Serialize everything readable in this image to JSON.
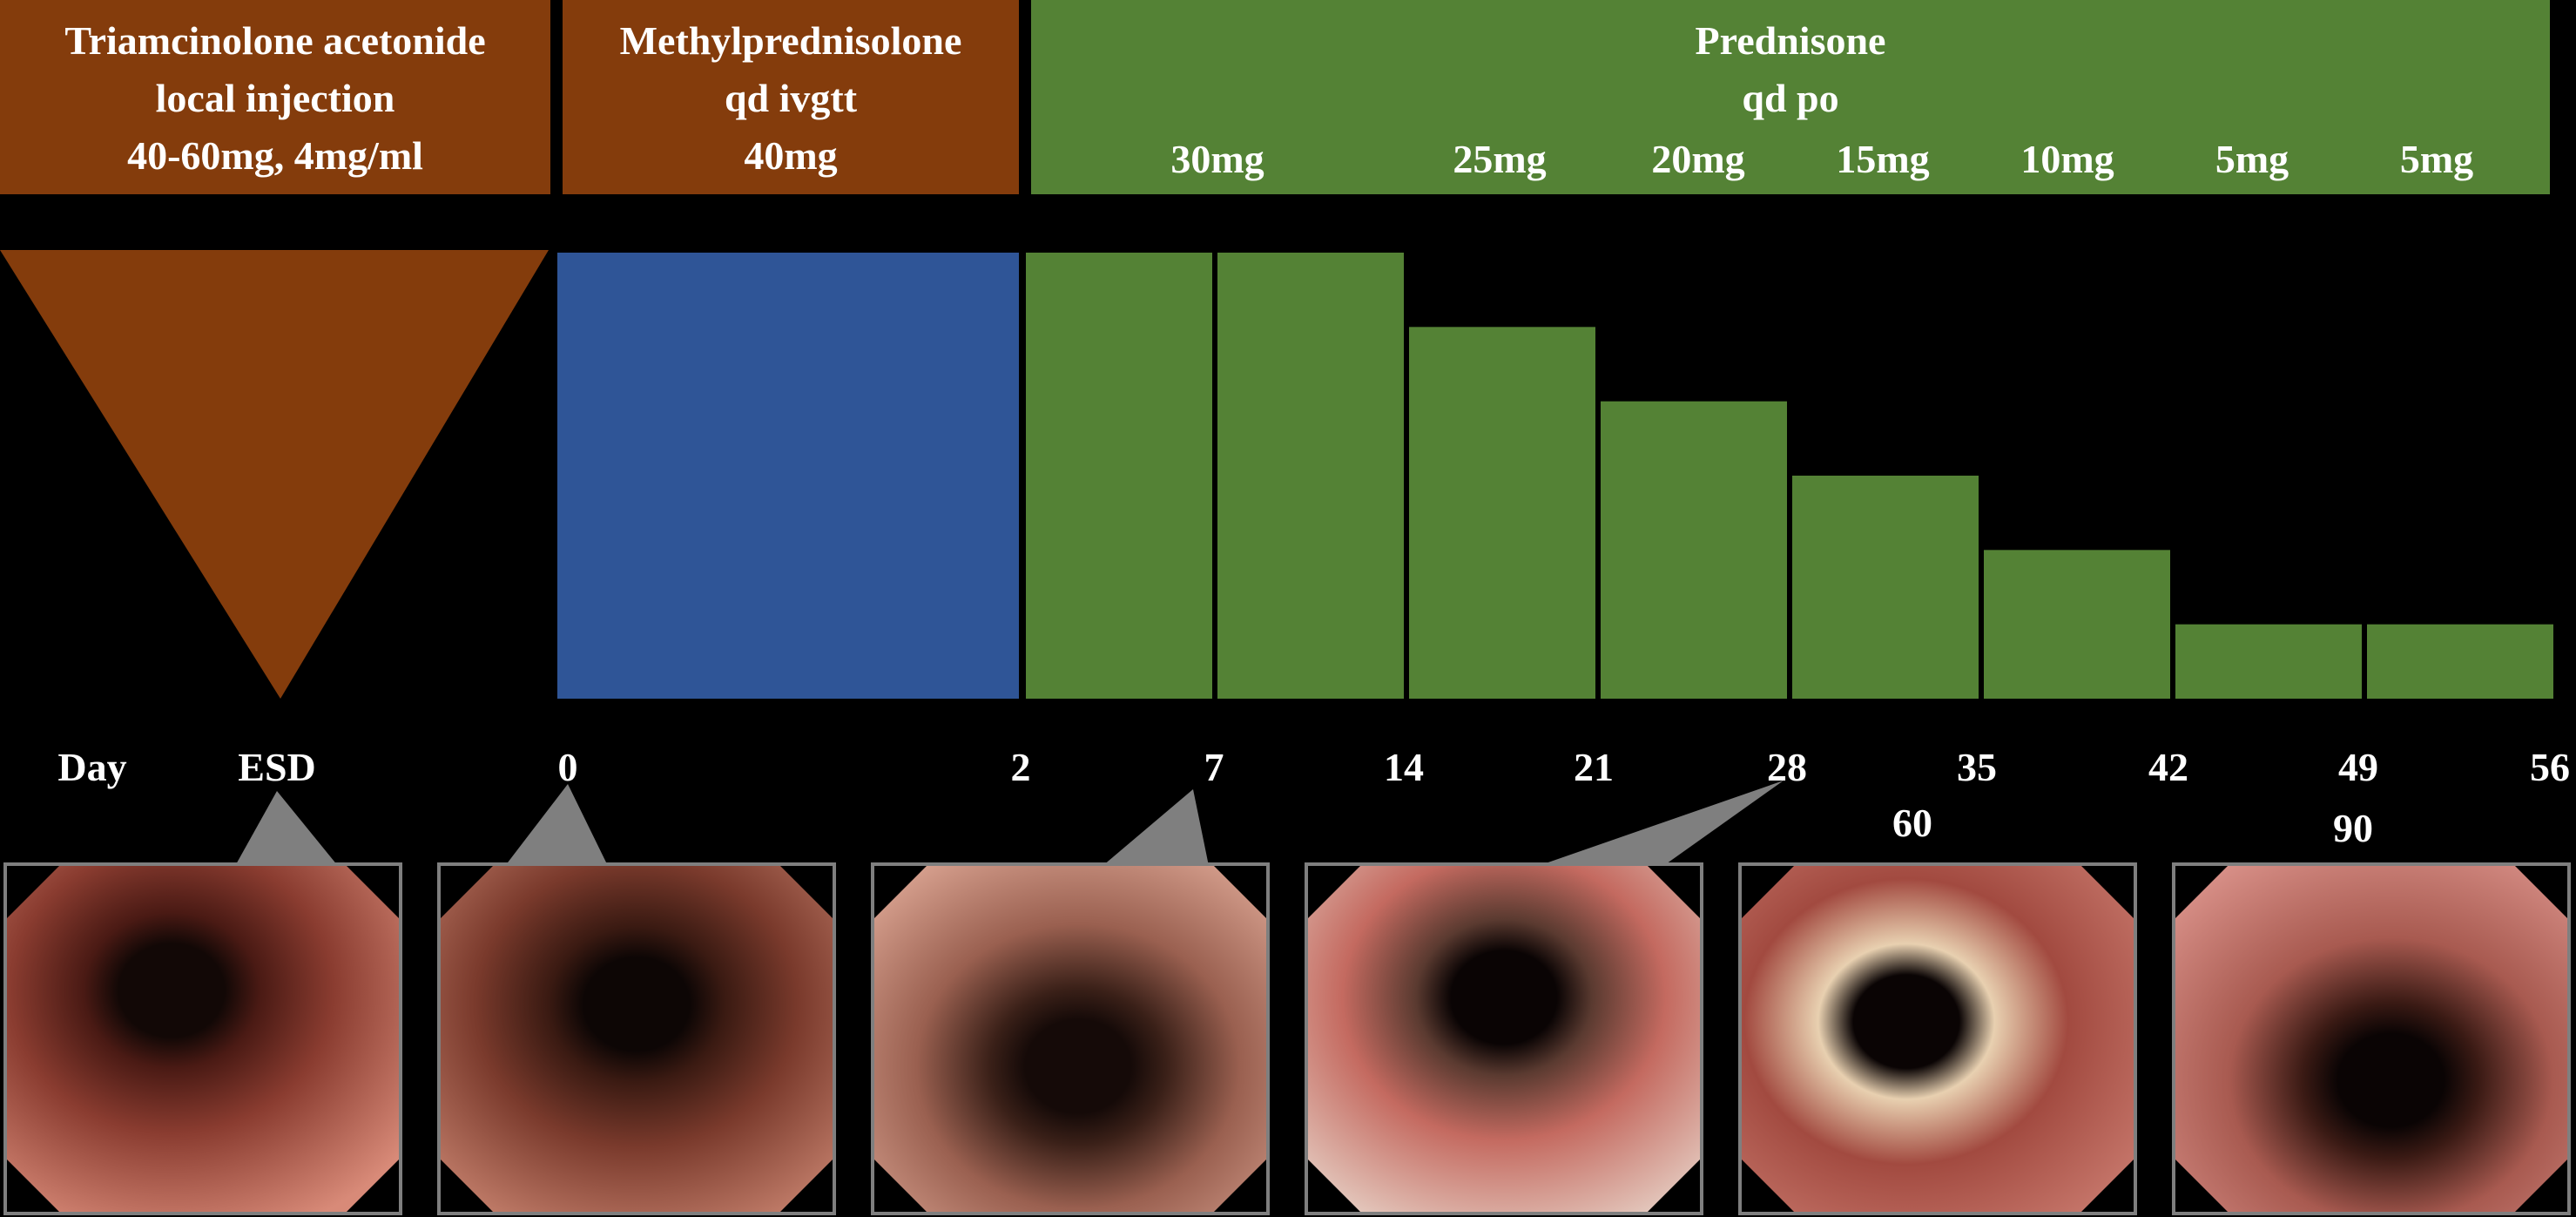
{
  "headers": {
    "triamcinolone": [
      "Triamcinolone acetonide",
      "local injection",
      "40-60mg, 4mg/ml"
    ],
    "methylpred": [
      "Methylprednisolone",
      "qd ivgtt",
      "40mg"
    ],
    "prednisone": [
      "Prednisone",
      "qd po"
    ]
  },
  "prednisone_doses": [
    "30mg",
    "25mg",
    "20mg",
    "15mg",
    "10mg",
    "5mg",
    "5mg"
  ],
  "timeline": {
    "day_label": "Day",
    "esd_label": "ESD",
    "days": [
      "0",
      "2",
      "7",
      "14",
      "21",
      "28",
      "35",
      "42",
      "49",
      "56"
    ],
    "extra_days": [
      "60",
      "90"
    ]
  },
  "chart_data": {
    "type": "bar",
    "series": [
      {
        "drug": "Triamcinolone acetonide",
        "route": "local injection",
        "dose": "40-60mg, 4mg/ml",
        "timing": "ESD"
      },
      {
        "drug": "Methylprednisolone",
        "route": "qd ivgtt",
        "dose_mg": 40,
        "days": [
          0,
          2
        ]
      },
      {
        "drug": "Prednisone",
        "route": "qd po",
        "weekly_dose_mg": [
          30,
          30,
          25,
          20,
          15,
          10,
          5,
          5
        ],
        "week_start_day": [
          2,
          7,
          14,
          21,
          28,
          35,
          42,
          49
        ],
        "week_end_day": [
          7,
          14,
          21,
          28,
          35,
          42,
          49,
          56
        ]
      }
    ]
  },
  "colors": {
    "brown": "#843c0c",
    "blue": "#2f5597",
    "green": "#548235",
    "pointer": "#7f7f7f"
  },
  "endoscopy_images": [
    "ESD",
    "0",
    "7",
    "28",
    "60",
    "90"
  ]
}
